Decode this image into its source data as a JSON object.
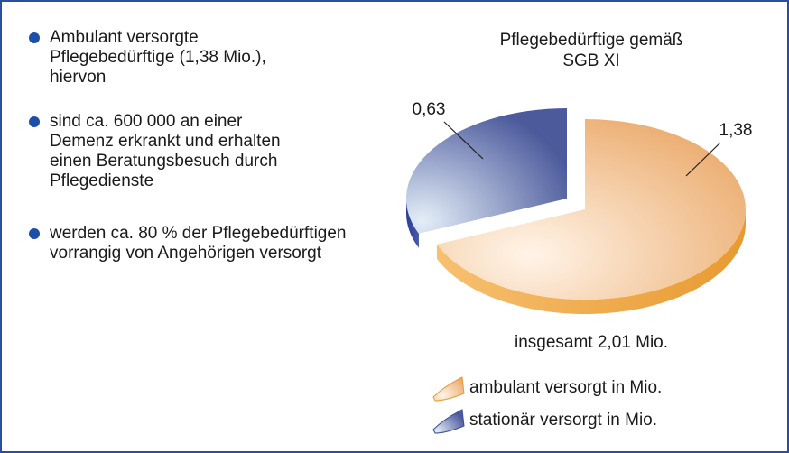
{
  "bullets": [
    [
      "Ambulant versorgte",
      "Pflegebedürftige (1,38 Mio.),",
      "hiervon"
    ],
    [
      "sind ca. 600 000 an einer",
      "Demenz erkrankt und erhalten",
      "einen Beratungsbesuch durch",
      "Pflegedienste"
    ],
    [
      "werden ca. 80 % der Pflegebedürftigen",
      "vorrangig von Angehörigen versorgt"
    ]
  ],
  "chart_data": {
    "type": "pie",
    "title": [
      "Pflegebedürftige gemäß",
      "SGB XI"
    ],
    "categories": [
      "ambulant versorgt in Mio.",
      "stationär versorgt in Mio."
    ],
    "values": [
      1.38,
      0.63
    ],
    "value_labels": [
      "1,38",
      "0,63"
    ],
    "colors": [
      "#f0b070",
      "#5a68a8"
    ],
    "annotation": "insgesamt 2,01 Mio.",
    "legend": "bottom"
  }
}
